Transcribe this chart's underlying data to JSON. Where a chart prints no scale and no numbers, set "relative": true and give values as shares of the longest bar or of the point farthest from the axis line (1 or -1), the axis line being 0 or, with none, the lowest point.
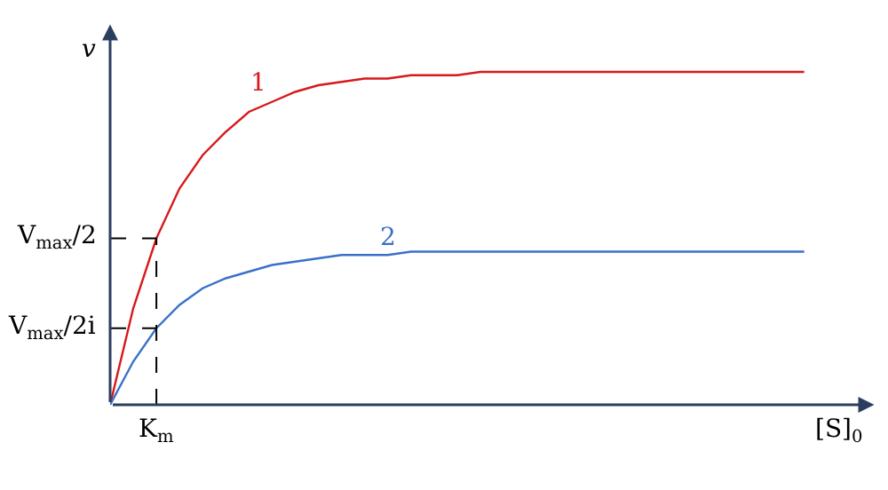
{
  "chart_data": {
    "type": "line",
    "relative": true,
    "xlabel": "[S]$_{0}$",
    "ylabel": "v",
    "annotations": [
      "K$_{m}$"
    ],
    "categories": [
      null,
      null,
      null,
      null,
      null,
      null,
      null,
      null,
      null,
      null,
      null,
      null,
      null,
      null,
      null,
      null,
      null,
      null,
      null,
      null,
      null,
      null,
      null,
      null,
      null,
      null,
      null,
      null,
      null,
      null,
      null
    ],
    "series": [
      {
        "name": "1",
        "color": "#d7191c",
        "values": [
          0,
          0.29,
          0.5,
          0.65,
          0.75,
          0.82,
          0.88,
          0.91,
          0.94,
          0.96,
          0.97,
          0.98,
          0.98,
          0.99,
          0.99,
          0.99,
          1,
          1,
          1,
          1,
          1,
          1,
          1,
          1,
          1,
          1,
          1,
          1,
          1,
          1,
          1
        ]
      },
      {
        "name": "2",
        "color": "#3a70c8",
        "values": [
          0,
          0.13,
          0.23,
          0.3,
          0.35,
          0.38,
          0.4,
          0.42,
          0.43,
          0.44,
          0.45,
          0.45,
          0.45,
          0.46,
          0.46,
          0.46,
          0.46,
          0.46,
          0.46,
          0.46,
          0.46,
          0.46,
          0.46,
          0.46,
          0.46,
          0.46,
          0.46,
          0.46,
          0.46,
          0.46,
          0.46
        ]
      }
    ],
    "ref_lines": [
      {
        "axis": "y",
        "value": 0.5,
        "label": "V$_{max}$/2",
        "line_style": "dashed"
      },
      {
        "axis": "y",
        "value": 0.23,
        "label": "V$_{max}$/2i",
        "line_style": "dashed"
      }
    ],
    "legend": false,
    "marker": "none",
    "line_style": "solid"
  }
}
